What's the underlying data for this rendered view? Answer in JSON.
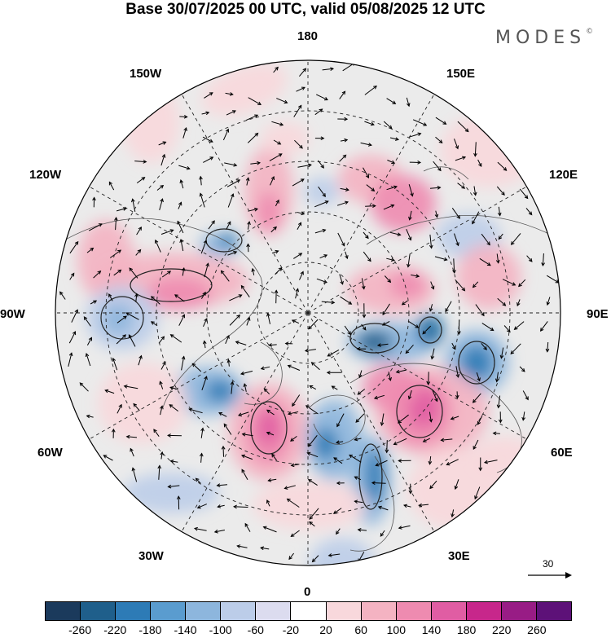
{
  "header": {
    "title": "Base 30/07/2025 00 UTC, valid 05/08/2025 12 UTC",
    "logo_text": "MODES",
    "logo_mark": "©"
  },
  "map": {
    "projection": "north-polar-stereographic",
    "longitude_labels": {
      "lon_180": "180",
      "lon_150E": "150E",
      "lon_120E": "120E",
      "lon_90E": "90E",
      "lon_60E": "60E",
      "lon_30E": "30E",
      "lon_0": "0",
      "lon_30W": "30W",
      "lon_60W": "60W",
      "lon_90W": "90W",
      "lon_120W": "120W",
      "lon_150W": "150W"
    },
    "background_color": "#ebebeb",
    "vector_reference_label": "30"
  },
  "colorbar": {
    "colors": [
      "#1b3a5c",
      "#1f5f8b",
      "#2d7bb6",
      "#5a9ccf",
      "#8db6dd",
      "#bccde9",
      "#dcdcef",
      "#ffffff",
      "#f8d8dc",
      "#f4b3c2",
      "#ee8bb0",
      "#e05da3",
      "#c7278b",
      "#981c85",
      "#5d1178"
    ],
    "labels": [
      "-260",
      "-220",
      "-180",
      "-140",
      "-100",
      "-60",
      "-20",
      "20",
      "60",
      "100",
      "140",
      "180",
      "220",
      "260"
    ]
  }
}
